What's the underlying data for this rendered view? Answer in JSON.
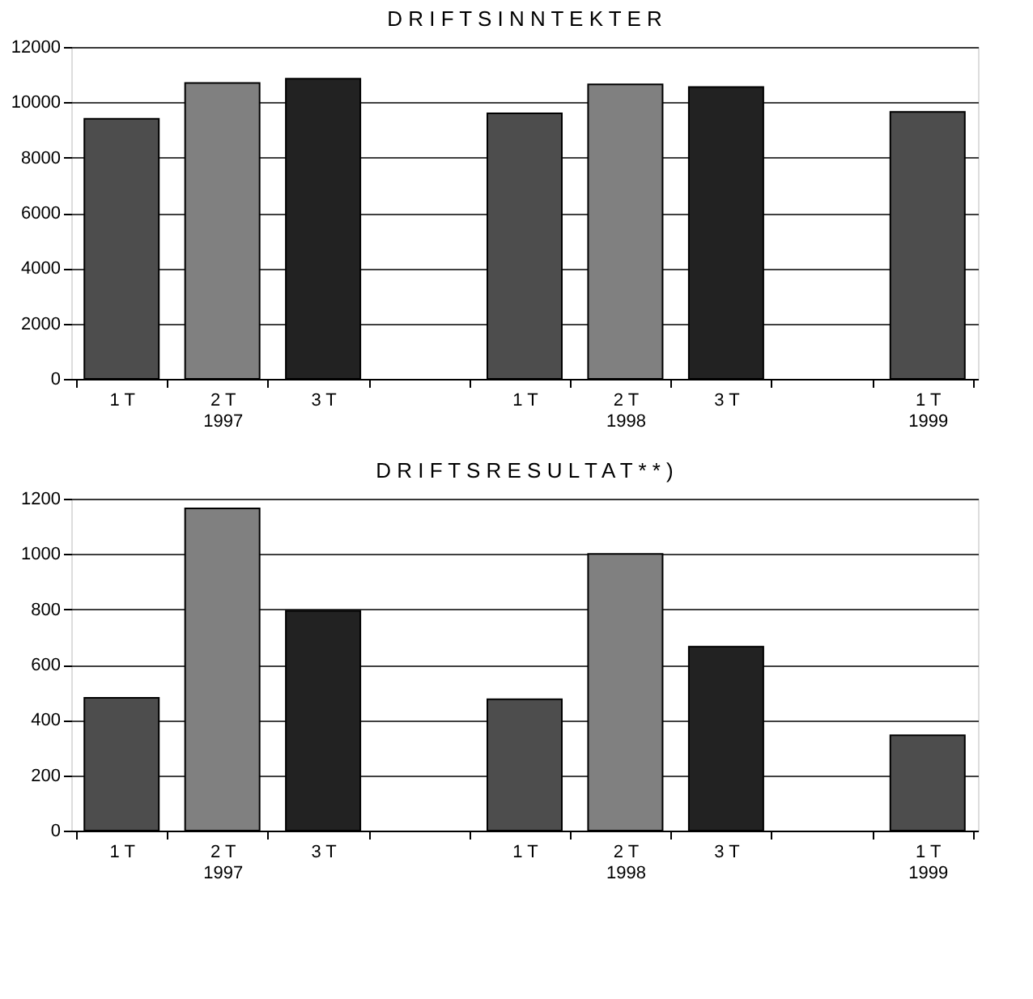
{
  "chart_data": [
    {
      "type": "bar",
      "title": "D R I F T S I N N T E K T E R",
      "categories": [
        "1 T",
        "2 T\n1997",
        "3 T",
        null,
        "1 T",
        "2 T\n1998",
        "3 T",
        null,
        "1 T\n1999"
      ],
      "values": [
        9400,
        10700,
        10850,
        null,
        9600,
        10650,
        10550,
        null,
        9650
      ],
      "colors": [
        "#4d4d4d",
        "#808080",
        "#222222",
        "#4d4d4d",
        "#4d4d4d",
        "#808080",
        "#222222",
        "#4d4d4d",
        "#4d4d4d"
      ],
      "ylim": [
        0,
        12000
      ],
      "yticks": [
        0,
        2000,
        4000,
        6000,
        8000,
        10000,
        12000
      ],
      "grid": "y"
    },
    {
      "type": "bar",
      "title": "D R I F T S R E S U L T A T  * * )",
      "categories": [
        "1 T",
        "2 T\n1997",
        "3 T",
        null,
        "1 T",
        "2 T\n1998",
        "3 T",
        null,
        "1 T\n1999"
      ],
      "values": [
        480,
        1165,
        795,
        null,
        475,
        1000,
        665,
        null,
        345
      ],
      "colors": [
        "#4d4d4d",
        "#808080",
        "#222222",
        "#4d4d4d",
        "#4d4d4d",
        "#808080",
        "#222222",
        "#4d4d4d",
        "#4d4d4d"
      ],
      "ylim": [
        0,
        1200
      ],
      "yticks": [
        0,
        200,
        400,
        600,
        800,
        1000,
        1200
      ],
      "grid": "y"
    }
  ]
}
